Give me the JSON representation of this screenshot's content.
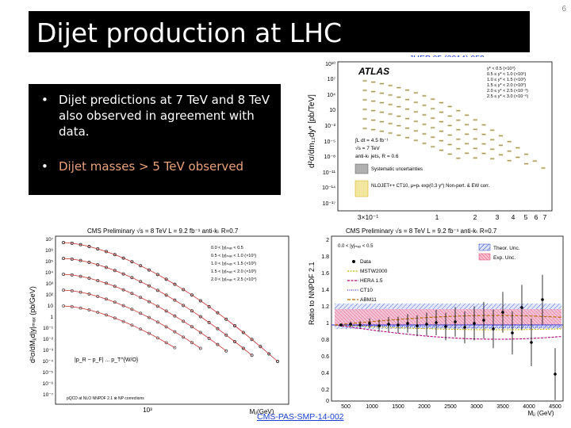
{
  "slide": {
    "title": "Dijet production at LHC",
    "page_number": "6",
    "bullets": [
      "Dijet predictions at 7 TeV and 8 TeV also observed in agreement with data.",
      "Dijet masses > 5 TeV observed"
    ],
    "references": {
      "atlas": "JHEP 05 (2014) 059",
      "cms": "CMS-PAS-SMP-14-002"
    }
  },
  "plots": {
    "atlas": {
      "header": "ATLAS",
      "ylabel": "d²σ/dm₁₂dy* [pb/TeV]",
      "y_ticks": [
        "10¹⁰",
        "10⁷",
        "10⁴",
        "10",
        "10⁻²",
        "10⁻⁵",
        "10⁻⁸",
        "10⁻¹¹",
        "10⁻¹⁴",
        "10⁻¹⁷"
      ],
      "x_ticks": [
        "3×10⁻¹",
        "1",
        "2",
        "3",
        "4",
        "5",
        "6",
        "7"
      ],
      "legend": [
        "y* < 0.5 (×10⁹)",
        "0.5 ≤ y* < 1.0 (×10⁶)",
        "1.0 ≤ y* < 1.5 (×10³)",
        "1.5 ≤ y* < 2.0 (×10⁰)",
        "2.0 ≤ y* < 2.5 (×10⁻³)",
        "2.5 ≤ y* < 3.0 (×10⁻⁶)"
      ],
      "info": [
        "∫L dt = 4.5 fb⁻¹",
        "√s = 7 TeV",
        "anti-kₜ jets, R = 0.6"
      ],
      "legend2": [
        "Systematic uncertainties",
        "NLOJET++ CT10, μ=pₜ exp(0.3 y*) Non-pert. & EW corr."
      ]
    },
    "cms_left": {
      "header": "CMS Preliminary   √s = 8 TeV   L = 9.2 fb⁻¹   anti-kₜ  R=0.7",
      "ylabel": "d²σ/dMⱼⱼd|y|ₘₐₓ (pb/GeV)",
      "xlabel": "Mⱼⱼ(GeV)",
      "y_ticks": [
        "10⁷",
        "10⁶",
        "10⁵",
        "10⁴",
        "10³",
        "10²",
        "10",
        "1",
        "10⁻¹",
        "10⁻²",
        "10⁻³",
        "10⁻⁴",
        "10⁻⁵",
        "10⁻⁶",
        "10⁻⁷"
      ],
      "x_ticks": [
        "10³"
      ],
      "legend": [
        "0.0 < |y|ₘₐₓ < 0.5",
        "0.5 < |y|ₘₐₓ < 1.0 (×10¹)",
        "1.0 < |y|ₘₐₓ < 1.5 (×10²)",
        "1.5 < |y|ₘₐₓ < 2.0 (×10³)",
        "2.0 < |y|ₘₐₓ < 2.5 (×10⁴)"
      ],
      "cut": "|p_R − p_F| ... p_T^{W/O}",
      "footnote": "pQCD at NLO NNPDF 2.1 ⊗ NP corrections"
    },
    "cms_right": {
      "header": "CMS Preliminary   √s = 8 TeV   L = 9.2 fb⁻¹   anti-kₜ  R=0.7",
      "ylabel": "Ratio to NNPDF 2.1",
      "xlabel": "Mⱼⱼ (GeV)",
      "y_ticks": [
        "2",
        "1.8",
        "1.6",
        "1.4",
        "1.2",
        "1",
        "0.8",
        "0.6",
        "0.4",
        "0.2",
        "0"
      ],
      "x_ticks": [
        "500",
        "1000",
        "1500",
        "2000",
        "2500",
        "3000",
        "3500",
        "4000",
        "4500"
      ],
      "selection": "0.0 < |y|ₘₐₓ < 0.5",
      "legend": [
        "Data",
        "MSTW2000",
        "HERA 1.5",
        "CT10",
        "ABM11"
      ],
      "legend_unc": [
        "Theor. Unc.",
        "Exp. Unc."
      ],
      "colors": {
        "data": "#000000",
        "mstw": "#c8b400",
        "hera": "#b4007f",
        "ct10": "#2a2ad0",
        "abm": "#b46a00",
        "theor": "#2244cc",
        "exp": "#e04070"
      }
    }
  }
}
